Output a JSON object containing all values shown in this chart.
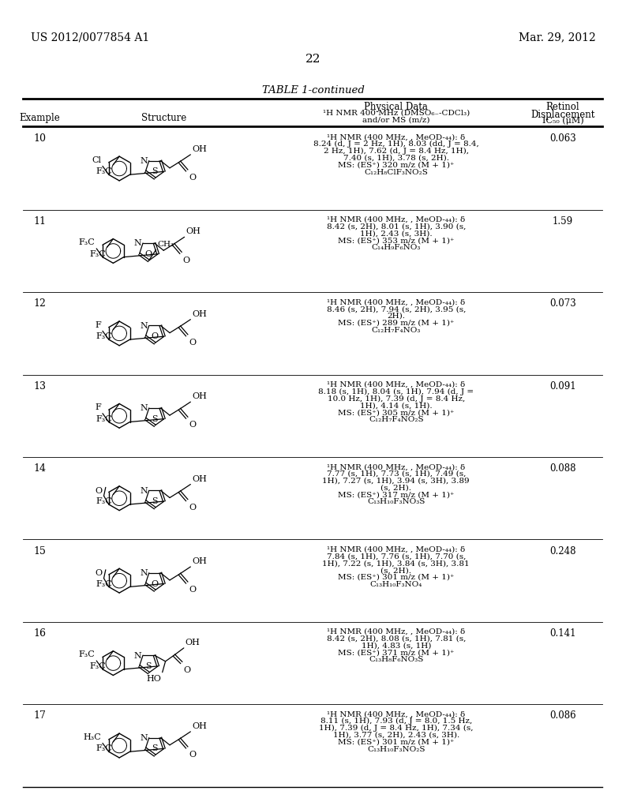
{
  "page_header_left": "US 2012/0077854 A1",
  "page_header_right": "Mar. 29, 2012",
  "page_number": "22",
  "table_title": "TABLE 1-continued",
  "background_color": "#ffffff",
  "text_color": "#000000",
  "rows": [
    {
      "example": "10",
      "nmr_lines": [
        "¹H NMR (400 MHz, , MeOD-₄₄): δ",
        "8.24 (d, J = 2 Hz, 1H), 8.03 (dd, J = 8.4,",
        "2 Hz, 1H), 7.62 (d, J = 8.4 Hz, 1H),",
        "7.40 (s, 1H), 3.78 (s, 2H).",
        "MS: (ES⁺) 320 m/z (M + 1)⁺",
        "C₁₂H₈ClF₃NO₂S"
      ],
      "ic50": "0.063"
    },
    {
      "example": "11",
      "nmr_lines": [
        "¹H NMR (400 MHz, , MeOD-₄₄): δ",
        "8.42 (s, 2H), 8.01 (s, 1H), 3.90 (s,",
        "1H), 2.43 (s, 3H).",
        "MS: (ES⁺) 353 m/z (M + 1)⁺",
        "C₁₄H₉F₆NO₃"
      ],
      "ic50": "1.59"
    },
    {
      "example": "12",
      "nmr_lines": [
        "¹H NMR (400 MHz, , MeOD-₄₄): δ",
        "8.46 (s, 2H), 7.94 (s, 2H), 3.95 (s,",
        "2H).",
        "MS: (ES⁺) 289 m/z (M + 1)⁺",
        "C₁₂H₇F₄NO₃"
      ],
      "ic50": "0.073"
    },
    {
      "example": "13",
      "nmr_lines": [
        "¹H NMR (400 MHz, , MeOD-₄₄): δ",
        "8.18 (s, 1H), 8.04 (s, 1H), 7.94 (d, J =",
        "10.0 Hz, 1H), 7.39 (d, J = 8.4 Hz,",
        "1H), 4.14 (s, 1H).",
        "MS: (ES⁺) 305 m/z (M + 1)⁺",
        "C₁₂H₇F₄NO₂S"
      ],
      "ic50": "0.091"
    },
    {
      "example": "14",
      "nmr_lines": [
        "¹H NMR (400 MHz, , MeOD-₄₄): δ",
        "7.77 (s, 1H), 7.73 (s, 1H), 7.49 (s,",
        "1H), 7.27 (s, 1H), 3.94 (s, 3H), 3.89",
        "(s, 2H).",
        "MS: (ES⁺) 317 m/z (M + 1)⁺",
        "C₁₃H₁₀F₃NO₃S"
      ],
      "ic50": "0.088"
    },
    {
      "example": "15",
      "nmr_lines": [
        "¹H NMR (400 MHz, , MeOD-₄₄): δ",
        "7.84 (s, 1H), 7.76 (s, 1H), 7.70 (s,",
        "1H), 7.22 (s, 1H), 3.84 (s, 3H), 3.81",
        "(s, 2H).",
        "MS: (ES⁺) 301 m/z (M + 1)⁺",
        "C₁₃H₁₀F₃NO₄"
      ],
      "ic50": "0.248"
    },
    {
      "example": "16",
      "nmr_lines": [
        "¹H NMR (400 MHz, , MeOD-₄₄): δ",
        "8.42 (s, 2H), 8.08 (s, 1H), 7.81 (s,",
        "1H), 4.83 (s, 1H)",
        "MS: (ES⁺) 371 m/z (M + 1)⁺",
        "C₁₃H₈F₆NO₃S"
      ],
      "ic50": "0.141"
    },
    {
      "example": "17",
      "nmr_lines": [
        "¹H NMR (400 MHz, , MeOD-₄₄): δ",
        "8.11 (s, 1H), 7.93 (d, J = 8.0, 1.5 Hz,",
        "1H), 7.39 (d, J = 8.4 Hz, 1H), 7.34 (s,",
        "1H), 3.77 (s, 2H), 2.43 (s, 3H).",
        "MS: (ES⁺) 301 m/z (M + 1)⁺",
        "C₁₃H₁₀F₃NO₂S"
      ],
      "ic50": "0.086"
    }
  ]
}
